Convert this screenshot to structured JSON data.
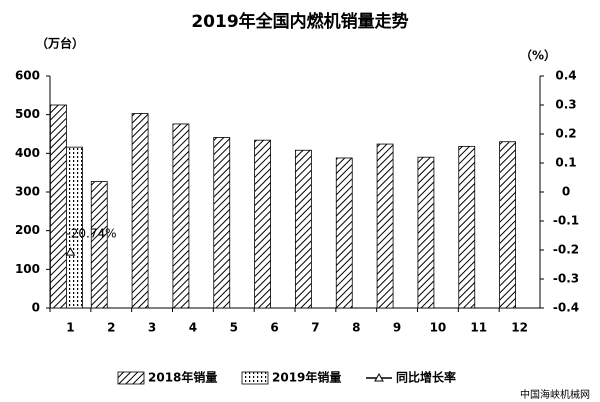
{
  "chart_data": {
    "type": "bar",
    "title": "2019年全国内燃机销量走势",
    "y_label": "（万台）",
    "y2_label": "（%）",
    "categories": [
      "1",
      "2",
      "3",
      "4",
      "5",
      "6",
      "7",
      "8",
      "9",
      "10",
      "11",
      "12"
    ],
    "series": [
      {
        "name": "2018年销量",
        "type": "bar",
        "color": "#000000",
        "pattern": "diagonal",
        "values": [
          525,
          327,
          503,
          476,
          441,
          434,
          408,
          388,
          424,
          390,
          418,
          430
        ]
      },
      {
        "name": "2019年销量",
        "type": "bar",
        "color": "#000000",
        "pattern": "dotted",
        "values": [
          416,
          null,
          null,
          null,
          null,
          null,
          null,
          null,
          null,
          null,
          null,
          null
        ]
      },
      {
        "name": "同比增长率",
        "type": "line",
        "axis": "y2",
        "color": "#000000",
        "marker": "triangle",
        "values": [
          -0.2074,
          null,
          null,
          null,
          null,
          null,
          null,
          null,
          null,
          null,
          null,
          null
        ],
        "value_labels": [
          "-20.74%",
          null,
          null,
          null,
          null,
          null,
          null,
          null,
          null,
          null,
          null,
          null
        ]
      }
    ],
    "ylim": [
      0,
      600
    ],
    "yticks": [
      0,
      100,
      200,
      300,
      400,
      500,
      600
    ],
    "y2lim": [
      -0.4,
      0.4
    ],
    "y2ticks": [
      -0.4,
      -0.3,
      -0.2,
      -0.1,
      0,
      0.1,
      0.2,
      0.3,
      0.4
    ],
    "grid": false,
    "legend": "bottom",
    "watermark": "中国海峡机械网"
  }
}
